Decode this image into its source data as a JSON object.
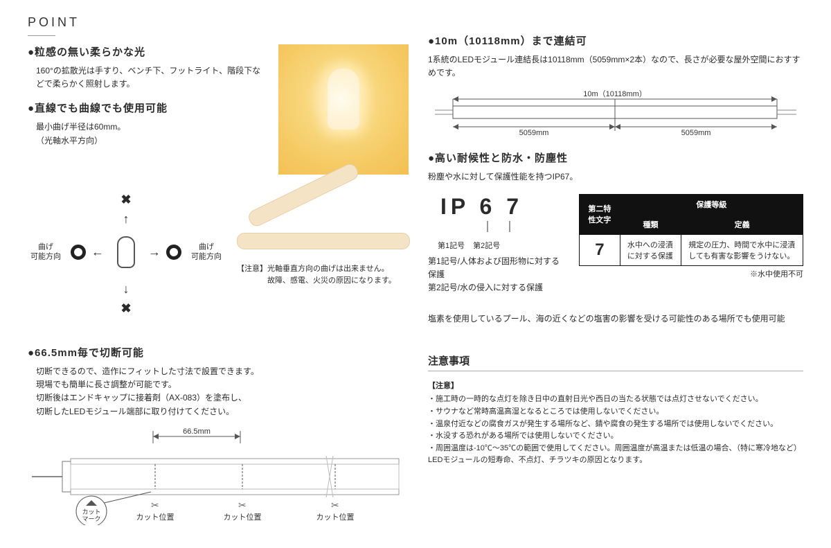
{
  "point_title": "POINT",
  "sec1": {
    "h": "●粒感の無い柔らかな光",
    "body": "160°の拡散光は手すり、ベンチ下、フットライト、階段下などで柔らかく照射します。"
  },
  "sec2": {
    "h": "●直線でも曲線でも使用可能",
    "body": "最小曲げ半径は60mm。\n（光軸水平方向）",
    "bend_ok_l1": "曲げ",
    "bend_ok_l2": "可能方向",
    "note1": "【注意】光軸垂直方向の曲げは出来ません。",
    "note2": "　　　　故障、感電、火災の原因になります。"
  },
  "sec3": {
    "h": "●66.5mm毎で切断可能",
    "b1": "切断できるので、造作にフィットした寸法で設置できます。",
    "b2": "現場でも簡単に長さ調整が可能です。",
    "b3": "切断後はエンドキャップに接着剤（AX-083）を塗布し、",
    "b4": "切断したLEDモジュール端部に取り付けてください。",
    "dim_label": "66.5mm",
    "cut_mark": "カット\nマーク",
    "cut_pos": "カット位置"
  },
  "secR1": {
    "h": "●10m（10118mm）まで連結可",
    "body": "1系統のLEDモジュール連結長は10118mm（5059mm×2本）なので、長さが必要な屋外空間におすすめです。",
    "top_label": "10m（10118mm）",
    "seg_a": "5059mm",
    "seg_b": "5059mm"
  },
  "secR2": {
    "h": "●高い耐候性と防水・防塵性",
    "body": "粉塵や水に対して保護性能を持つIP67。",
    "ip_big": "IP 6 7",
    "ip_lbl1": "第1記号",
    "ip_lbl2": "第2記号",
    "ip_line1": "第1記号/人体および固形物に対する保護",
    "ip_line2": "第2記号/水の侵入に対する保護",
    "table": {
      "h1": "第二特性文字",
      "h2": "保護等級",
      "h2a": "種類",
      "h2b": "定義",
      "val": "7",
      "kind": "水中への浸漬に対する保護",
      "def": "規定の圧力、時間で水中に浸漬しても有害な影響をうけない。"
    },
    "note": "※水中使用不可",
    "chlorine": "塩素を使用しているプール、海の近くなどの塩害の影響を受ける可能性のある場所でも使用可能"
  },
  "warn": {
    "h": "注意事項",
    "sub": "【注意】",
    "items": [
      "施工時の一時的な点灯を除き日中の直射日光や西日の当たる状態では点灯させないでください。",
      "サウナなど常時高温高湿となるところでは使用しないでください。",
      "温泉付近などの腐食ガスが発生する場所など、錆や腐食の発生する場所では使用しないでください。",
      "水没する恐れがある場所では使用しないでください。",
      "周囲温度は-10℃～35℃の範囲で使用してください。周囲温度が高温または低温の場合、（特に寒冷地など）LEDモジュールの短寿命、不点灯、チラツキの原因となります。"
    ]
  },
  "colors": {
    "text": "#2b2b2b",
    "warm": "#f5cb66",
    "table_dark": "#111111"
  }
}
